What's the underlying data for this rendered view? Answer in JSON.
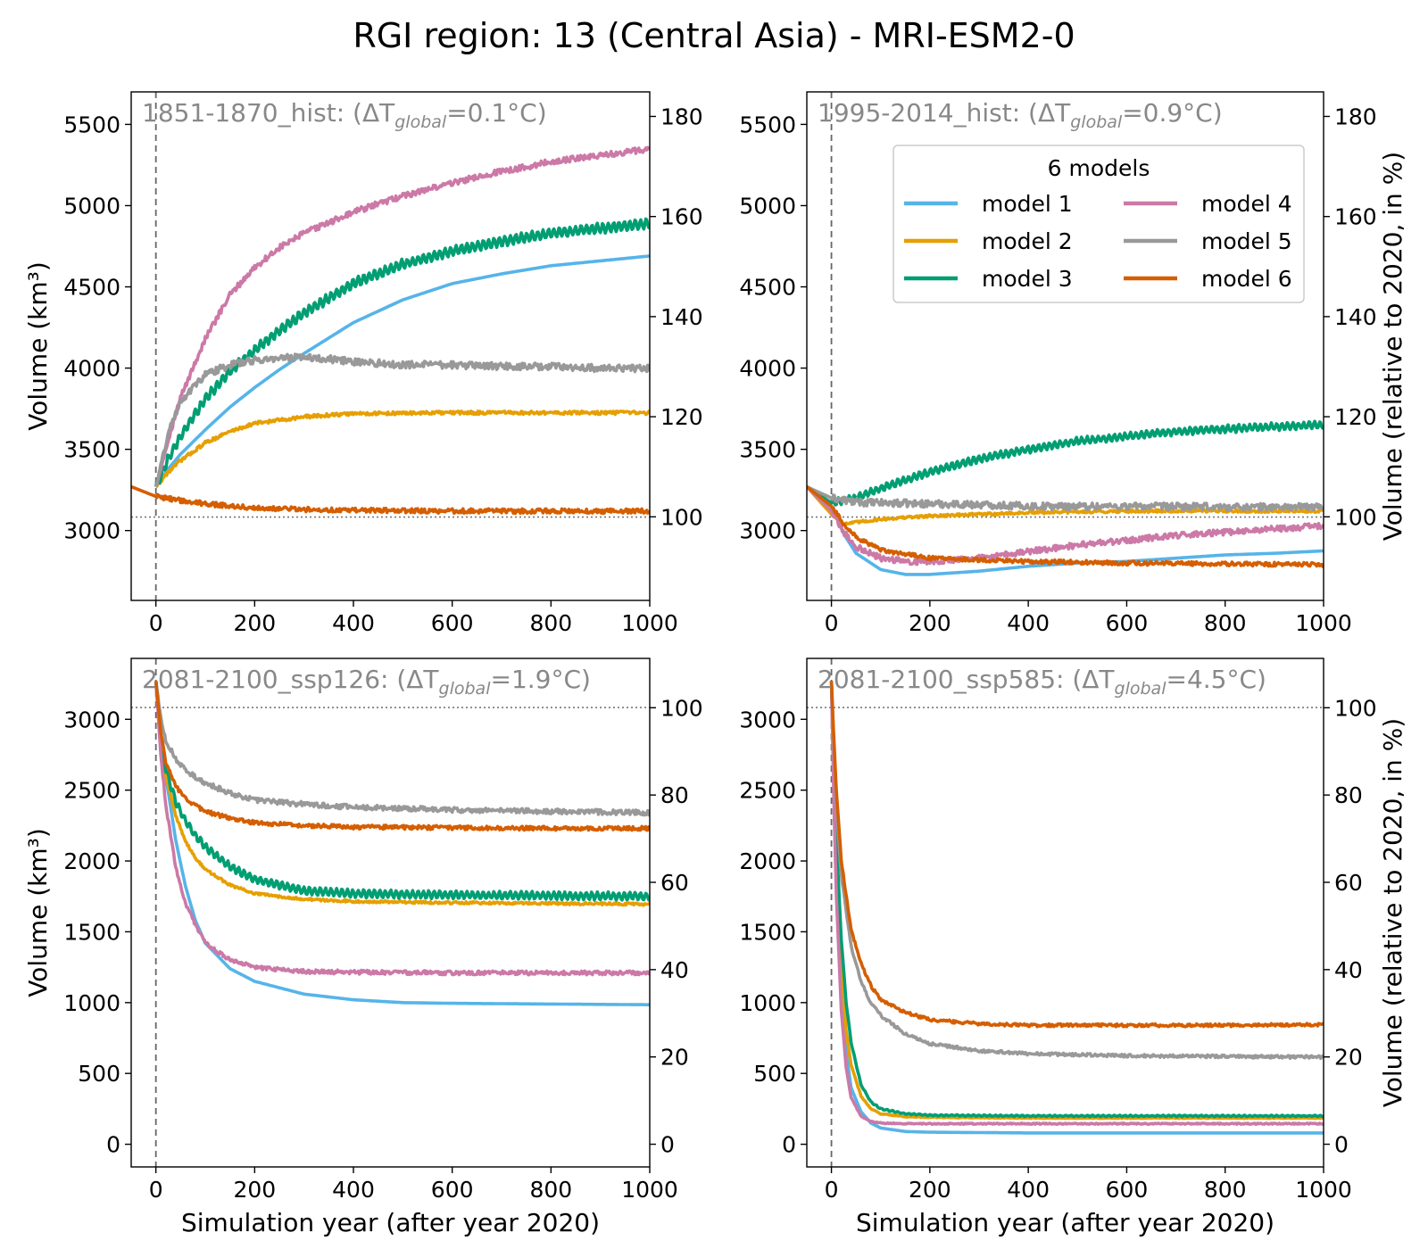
{
  "figure": {
    "title": "RGI region: 13 (Central Asia) - MRI-ESM2-0",
    "colors": {
      "model 1": "#56B4E9",
      "model 2": "#E69F00",
      "model 3": "#009E73",
      "model 4": "#CC79A7",
      "model 5": "#999999",
      "model 6": "#D55E00"
    },
    "legend": {
      "title": "6 models",
      "entries": [
        "model 1",
        "model 2",
        "model 3",
        "model 4",
        "model 5",
        "model 6"
      ],
      "placement": "upper-right of top-right panel"
    }
  },
  "chart_data": [
    {
      "type": "line",
      "title": "1851-1870_hist: (ΔT",
      "title_sub": "global",
      "title_tail": "=0.1°C)",
      "xlabel": "",
      "ylabel": "Volume (km³)",
      "ylabel_right": "",
      "xlim": [
        -50,
        1000
      ],
      "ylim": [
        2570,
        5700
      ],
      "ylim_right_pct": [
        83.3,
        184.9
      ],
      "xticks": [
        0,
        200,
        400,
        600,
        800,
        1000
      ],
      "yticks": [
        3000,
        3500,
        4000,
        4500,
        5000,
        5500
      ],
      "yticks_right": [
        100,
        120,
        140,
        160,
        180
      ],
      "reference_volume": 3083,
      "series": [
        {
          "name": "model 1",
          "x": [
            0,
            25,
            50,
            100,
            150,
            200,
            250,
            300,
            400,
            500,
            600,
            700,
            800,
            900,
            1000
          ],
          "y": [
            3270,
            3380,
            3470,
            3620,
            3760,
            3880,
            3990,
            4090,
            4280,
            4420,
            4520,
            4580,
            4630,
            4660,
            4690
          ],
          "noise": 0,
          "osc": 0
        },
        {
          "name": "model 2",
          "x": [
            0,
            25,
            50,
            100,
            150,
            200,
            300,
            400,
            600,
            800,
            1000
          ],
          "y": [
            3270,
            3360,
            3430,
            3540,
            3610,
            3660,
            3700,
            3720,
            3725,
            3725,
            3725
          ],
          "noise": 10,
          "osc": 0
        },
        {
          "name": "model 3",
          "x": [
            0,
            25,
            50,
            100,
            150,
            200,
            250,
            300,
            400,
            500,
            600,
            700,
            800,
            900,
            1000
          ],
          "y": [
            3270,
            3440,
            3580,
            3810,
            3980,
            4110,
            4230,
            4340,
            4520,
            4640,
            4720,
            4780,
            4830,
            4860,
            4890
          ],
          "noise": 6,
          "osc": 28
        },
        {
          "name": "model 4",
          "x": [
            0,
            25,
            50,
            100,
            150,
            200,
            250,
            300,
            400,
            500,
            600,
            700,
            800,
            900,
            1000
          ],
          "y": [
            3270,
            3560,
            3820,
            4180,
            4450,
            4620,
            4740,
            4830,
            4960,
            5060,
            5140,
            5210,
            5270,
            5310,
            5350
          ],
          "noise": 18,
          "osc": 0
        },
        {
          "name": "model 5",
          "x": [
            0,
            25,
            50,
            100,
            150,
            200,
            250,
            300,
            400,
            500,
            600,
            700,
            800,
            900,
            1000
          ],
          "y": [
            3270,
            3600,
            3800,
            3960,
            4020,
            4050,
            4060,
            4070,
            4040,
            4020,
            4020,
            4010,
            4010,
            4000,
            4000
          ],
          "noise": 22,
          "osc": 0
        },
        {
          "name": "model 6",
          "x": [
            -50,
            0,
            50,
            100,
            200,
            300,
            400,
            600,
            800,
            1000
          ],
          "y": [
            3270,
            3210,
            3185,
            3165,
            3140,
            3130,
            3125,
            3120,
            3120,
            3120
          ],
          "noise": 14,
          "osc": 0
        }
      ]
    },
    {
      "type": "line",
      "title": "1995-2014_hist: (ΔT",
      "title_sub": "global",
      "title_tail": "=0.9°C)",
      "xlabel": "",
      "ylabel": "",
      "ylabel_right": "Volume (relative to 2020, in %)",
      "xlim": [
        -50,
        1000
      ],
      "ylim": [
        2570,
        5700
      ],
      "ylim_right_pct": [
        83.3,
        184.9
      ],
      "xticks": [
        0,
        200,
        400,
        600,
        800,
        1000
      ],
      "yticks": [
        3000,
        3500,
        4000,
        4500,
        5000,
        5500
      ],
      "yticks_right": [
        100,
        120,
        140,
        160,
        180
      ],
      "reference_volume": 3083,
      "series": [
        {
          "name": "model 1",
          "x": [
            -50,
            0,
            25,
            50,
            100,
            150,
            200,
            300,
            400,
            500,
            600,
            700,
            800,
            900,
            1000
          ],
          "y": [
            3270,
            3150,
            2980,
            2860,
            2760,
            2730,
            2730,
            2750,
            2780,
            2800,
            2810,
            2830,
            2850,
            2860,
            2875
          ],
          "noise": 0,
          "osc": 0
        },
        {
          "name": "model 2",
          "x": [
            -50,
            0,
            25,
            50,
            100,
            200,
            400,
            600,
            800,
            1000
          ],
          "y": [
            3270,
            3100,
            3040,
            3050,
            3070,
            3090,
            3110,
            3120,
            3120,
            3120
          ],
          "noise": 8,
          "osc": 0
        },
        {
          "name": "model 3",
          "x": [
            -50,
            0,
            50,
            100,
            200,
            300,
            400,
            500,
            600,
            700,
            800,
            900,
            1000
          ],
          "y": [
            3270,
            3170,
            3200,
            3260,
            3360,
            3440,
            3500,
            3550,
            3580,
            3610,
            3625,
            3640,
            3650
          ],
          "noise": 5,
          "osc": 20
        },
        {
          "name": "model 4",
          "x": [
            -50,
            0,
            25,
            50,
            100,
            150,
            200,
            300,
            400,
            500,
            600,
            700,
            800,
            900,
            1000
          ],
          "y": [
            3270,
            3120,
            2990,
            2900,
            2830,
            2810,
            2810,
            2830,
            2870,
            2910,
            2940,
            2970,
            2990,
            3010,
            3030
          ],
          "noise": 18,
          "osc": 0
        },
        {
          "name": "model 5",
          "x": [
            -50,
            0,
            50,
            100,
            200,
            300,
            400,
            600,
            800,
            1000
          ],
          "y": [
            3270,
            3200,
            3175,
            3170,
            3165,
            3160,
            3150,
            3150,
            3145,
            3145
          ],
          "noise": 22,
          "osc": 0
        },
        {
          "name": "model 6",
          "x": [
            -50,
            0,
            25,
            50,
            100,
            200,
            400,
            600,
            800,
            1000
          ],
          "y": [
            3270,
            3150,
            3040,
            2960,
            2880,
            2830,
            2810,
            2800,
            2795,
            2790
          ],
          "noise": 12,
          "osc": 0
        }
      ]
    },
    {
      "type": "line",
      "title": "2081-2100_ssp126: (ΔT",
      "title_sub": "global",
      "title_tail": "=1.9°C)",
      "xlabel": "Simulation year (after year 2020)",
      "ylabel": "Volume (km³)",
      "ylabel_right": "",
      "xlim": [
        -50,
        1000
      ],
      "ylim": [
        -160,
        3430
      ],
      "ylim_right_pct": [
        -5.2,
        111.3
      ],
      "xticks": [
        0,
        200,
        400,
        600,
        800,
        1000
      ],
      "yticks": [
        0,
        500,
        1000,
        1500,
        2000,
        2500,
        3000
      ],
      "yticks_right": [
        0,
        20,
        40,
        60,
        80,
        100
      ],
      "reference_volume": 3083,
      "series": [
        {
          "name": "model 1",
          "x": [
            0,
            10,
            20,
            40,
            60,
            80,
            100,
            150,
            200,
            300,
            400,
            500,
            600,
            800,
            1000
          ],
          "y": [
            3270,
            2900,
            2600,
            2150,
            1820,
            1580,
            1420,
            1240,
            1150,
            1060,
            1020,
            1000,
            995,
            990,
            985
          ],
          "noise": 0,
          "osc": 0
        },
        {
          "name": "model 2",
          "x": [
            0,
            10,
            20,
            40,
            60,
            80,
            100,
            150,
            200,
            300,
            400,
            600,
            800,
            1000
          ],
          "y": [
            3270,
            2900,
            2600,
            2320,
            2140,
            2020,
            1940,
            1830,
            1770,
            1730,
            1715,
            1705,
            1700,
            1695
          ],
          "noise": 8,
          "osc": 0
        },
        {
          "name": "model 3",
          "x": [
            0,
            10,
            20,
            40,
            60,
            80,
            100,
            150,
            200,
            300,
            400,
            600,
            800,
            1000
          ],
          "y": [
            3270,
            2880,
            2650,
            2420,
            2280,
            2180,
            2100,
            1960,
            1870,
            1790,
            1770,
            1760,
            1755,
            1750
          ],
          "noise": 5,
          "osc": 25
        },
        {
          "name": "model 4",
          "x": [
            0,
            10,
            20,
            40,
            60,
            80,
            100,
            150,
            200,
            300,
            400,
            600,
            800,
            1000
          ],
          "y": [
            3270,
            2750,
            2400,
            1960,
            1700,
            1550,
            1420,
            1300,
            1250,
            1220,
            1215,
            1210,
            1210,
            1210
          ],
          "noise": 14,
          "osc": 0
        },
        {
          "name": "model 5",
          "x": [
            0,
            10,
            20,
            40,
            60,
            80,
            100,
            150,
            200,
            300,
            400,
            500,
            600,
            800,
            1000
          ],
          "y": [
            3270,
            3000,
            2850,
            2720,
            2640,
            2590,
            2550,
            2480,
            2430,
            2400,
            2380,
            2370,
            2360,
            2350,
            2340
          ],
          "noise": 18,
          "osc": 0
        },
        {
          "name": "model 6",
          "x": [
            0,
            10,
            20,
            40,
            60,
            80,
            100,
            150,
            200,
            300,
            400,
            600,
            800,
            1000
          ],
          "y": [
            3270,
            2900,
            2700,
            2530,
            2440,
            2390,
            2350,
            2300,
            2270,
            2250,
            2240,
            2235,
            2230,
            2230
          ],
          "noise": 14,
          "osc": 0
        }
      ]
    },
    {
      "type": "line",
      "title": "2081-2100_ssp585: (ΔT",
      "title_sub": "global",
      "title_tail": "=4.5°C)",
      "xlabel": "Simulation year (after year 2020)",
      "ylabel": "",
      "ylabel_right": "Volume (relative to 2020, in %)",
      "xlim": [
        -50,
        1000
      ],
      "ylim": [
        -160,
        3430
      ],
      "ylim_right_pct": [
        -5.2,
        111.3
      ],
      "xticks": [
        0,
        200,
        400,
        600,
        800,
        1000
      ],
      "yticks": [
        0,
        500,
        1000,
        1500,
        2000,
        2500,
        3000
      ],
      "yticks_right": [
        0,
        20,
        40,
        60,
        80,
        100
      ],
      "reference_volume": 3083,
      "series": [
        {
          "name": "model 1",
          "x": [
            0,
            5,
            10,
            20,
            30,
            40,
            60,
            80,
            100,
            150,
            200,
            400,
            600,
            800,
            1000
          ],
          "y": [
            3270,
            2500,
            1900,
            1100,
            650,
            400,
            230,
            150,
            115,
            90,
            85,
            80,
            80,
            80,
            80
          ],
          "noise": 0,
          "osc": 0
        },
        {
          "name": "model 2",
          "x": [
            0,
            5,
            10,
            20,
            30,
            40,
            60,
            80,
            100,
            150,
            200,
            400,
            600,
            800,
            1000
          ],
          "y": [
            3270,
            2550,
            2000,
            1250,
            800,
            560,
            340,
            250,
            215,
            195,
            190,
            185,
            185,
            185,
            185
          ],
          "noise": 3,
          "osc": 0
        },
        {
          "name": "model 3",
          "x": [
            0,
            5,
            10,
            20,
            30,
            40,
            60,
            80,
            100,
            150,
            200,
            400,
            600,
            800,
            1000
          ],
          "y": [
            3270,
            2650,
            2150,
            1450,
            1000,
            720,
            420,
            300,
            250,
            215,
            205,
            200,
            200,
            200,
            200
          ],
          "noise": 2,
          "osc": 4
        },
        {
          "name": "model 4",
          "x": [
            0,
            5,
            10,
            20,
            30,
            40,
            60,
            80,
            100,
            150,
            200,
            400,
            600,
            800,
            1000
          ],
          "y": [
            3270,
            2400,
            1750,
            950,
            540,
            330,
            200,
            160,
            150,
            145,
            145,
            145,
            145,
            145,
            145
          ],
          "noise": 4,
          "osc": 0
        },
        {
          "name": "model 5",
          "x": [
            0,
            5,
            10,
            20,
            40,
            60,
            80,
            100,
            150,
            200,
            300,
            400,
            600,
            800,
            1000
          ],
          "y": [
            3270,
            2800,
            2400,
            1900,
            1400,
            1150,
            1000,
            910,
            780,
            710,
            660,
            640,
            625,
            620,
            615
          ],
          "noise": 10,
          "osc": 0
        },
        {
          "name": "model 6",
          "x": [
            0,
            5,
            10,
            20,
            40,
            60,
            80,
            100,
            150,
            200,
            300,
            400,
            600,
            800,
            1000
          ],
          "y": [
            3270,
            2850,
            2500,
            2000,
            1520,
            1280,
            1120,
            1020,
            930,
            880,
            850,
            840,
            840,
            840,
            845
          ],
          "noise": 10,
          "osc": 0
        }
      ]
    }
  ]
}
